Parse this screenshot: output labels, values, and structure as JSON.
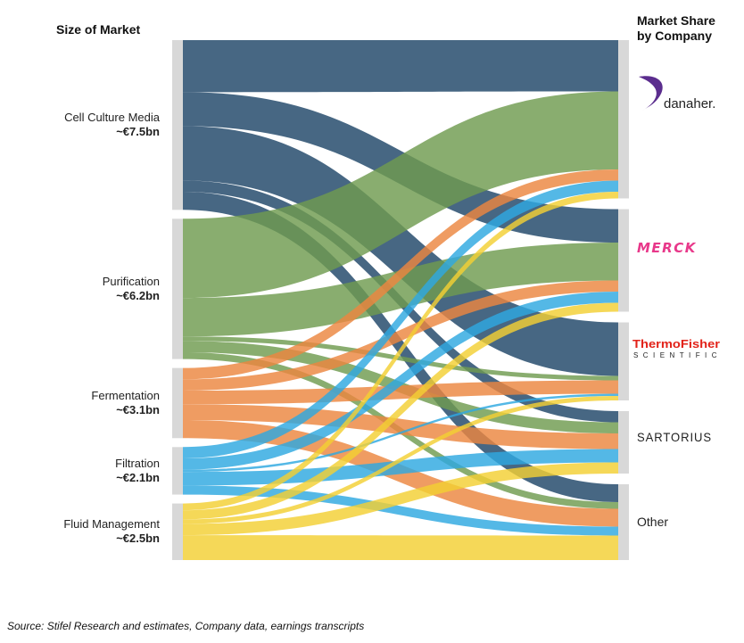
{
  "header_left": "Size of Market",
  "header_right_line1": "Market Share",
  "header_right_line2": "by Company",
  "source_note": "Source: Stifel Research and estimates, Company data, earnings transcripts",
  "logo_text": {
    "danaher": "danaher.",
    "merck": "MERCK",
    "thermo_line1": "ThermoFisher",
    "thermo_line2": "SCIENTIFIC",
    "sartorius": "SARTORIUS"
  },
  "colors": {
    "cell_culture": "#1f4668",
    "purification": "#6f9b4f",
    "fermentation": "#ec8640",
    "filtration": "#2ea8e0",
    "fluid_management": "#f3cf33",
    "node": "#d8d8d8",
    "danaher": "#5b2d8e",
    "merck": "#e8388a",
    "thermo": "#e2231a"
  },
  "chart_data": {
    "type": "sankey",
    "unit": "€bn",
    "sources": [
      {
        "id": "ccm",
        "label": "Cell Culture Media",
        "value_label": "~€7.5bn",
        "value": 7.5
      },
      {
        "id": "pur",
        "label": "Purification",
        "value_label": "~€6.2bn",
        "value": 6.2
      },
      {
        "id": "fer",
        "label": "Fermentation",
        "value_label": "~€3.1bn",
        "value": 3.1
      },
      {
        "id": "fil",
        "label": "Filtration",
        "value_label": "~€2.1bn",
        "value": 2.1
      },
      {
        "id": "flu",
        "label": "Fluid Management",
        "value_label": "~€2.5bn",
        "value": 2.5
      }
    ],
    "targets": [
      {
        "id": "danaher",
        "label": "Danaher"
      },
      {
        "id": "merck",
        "label": "Merck"
      },
      {
        "id": "thermo",
        "label": "Thermo Fisher Scientific"
      },
      {
        "id": "sartorius",
        "label": "Sartorius"
      },
      {
        "id": "other",
        "label": "Other"
      }
    ],
    "flows": [
      {
        "source": "ccm",
        "target": "danaher",
        "value": 2.3
      },
      {
        "source": "ccm",
        "target": "merck",
        "value": 1.5
      },
      {
        "source": "ccm",
        "target": "thermo",
        "value": 2.4
      },
      {
        "source": "ccm",
        "target": "sartorius",
        "value": 0.5
      },
      {
        "source": "ccm",
        "target": "other",
        "value": 0.8
      },
      {
        "source": "pur",
        "target": "danaher",
        "value": 3.5
      },
      {
        "source": "pur",
        "target": "merck",
        "value": 1.7
      },
      {
        "source": "pur",
        "target": "thermo",
        "value": 0.2
      },
      {
        "source": "pur",
        "target": "sartorius",
        "value": 0.5
      },
      {
        "source": "pur",
        "target": "other",
        "value": 0.3
      },
      {
        "source": "fer",
        "target": "danaher",
        "value": 0.5
      },
      {
        "source": "fer",
        "target": "merck",
        "value": 0.5
      },
      {
        "source": "fer",
        "target": "thermo",
        "value": 0.6
      },
      {
        "source": "fer",
        "target": "sartorius",
        "value": 0.7
      },
      {
        "source": "fer",
        "target": "other",
        "value": 0.8
      },
      {
        "source": "fil",
        "target": "danaher",
        "value": 0.5
      },
      {
        "source": "fil",
        "target": "merck",
        "value": 0.5
      },
      {
        "source": "fil",
        "target": "thermo",
        "value": 0.1
      },
      {
        "source": "fil",
        "target": "sartorius",
        "value": 0.6
      },
      {
        "source": "fil",
        "target": "other",
        "value": 0.4
      },
      {
        "source": "flu",
        "target": "danaher",
        "value": 0.3
      },
      {
        "source": "flu",
        "target": "merck",
        "value": 0.4
      },
      {
        "source": "flu",
        "target": "thermo",
        "value": 0.2
      },
      {
        "source": "flu",
        "target": "sartorius",
        "value": 0.5
      },
      {
        "source": "flu",
        "target": "other",
        "value": 1.1
      }
    ]
  }
}
